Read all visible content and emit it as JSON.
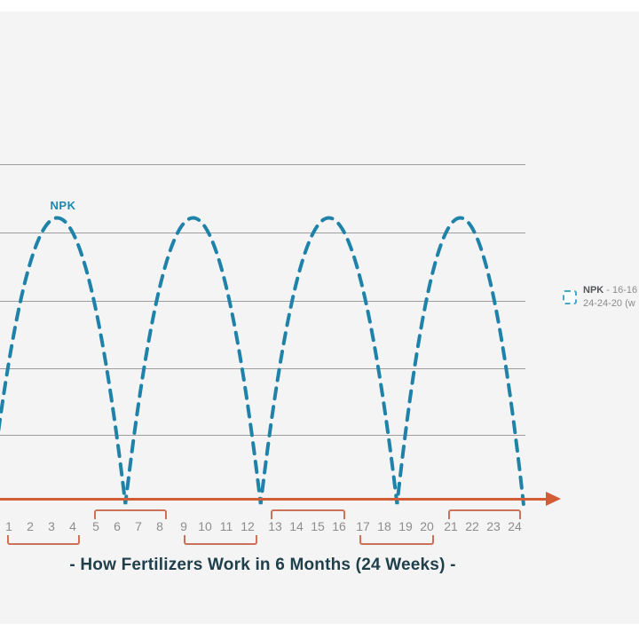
{
  "frame": {
    "background": "#ffffff",
    "canvas_background": "#f4f4f4",
    "gridline_color": "#9d9d9d"
  },
  "chart_data": {
    "type": "line",
    "title": "- How Fertilizers Work in 6 Months (24 Weeks) -",
    "xlabel": "",
    "ylabel": "",
    "x_tick_labels": [
      "1",
      "2",
      "3",
      "4",
      "5",
      "6",
      "7",
      "8",
      "9",
      "10",
      "11",
      "12",
      "13",
      "14",
      "15",
      "16",
      "17",
      "18",
      "19",
      "20",
      "21",
      "22",
      "23",
      "24"
    ],
    "grid": {
      "horizontal_gridlines": 5,
      "visible": true
    },
    "x_axis_style": "orange arrow pointing right",
    "series": [
      {
        "name": "NPK",
        "line_style": "dashed",
        "color": "#1f82a8",
        "description": "Nutrient availability rises and falls in four repeating arches, one per ~6-week application cycle; each arch peaks mid-cycle and returns to zero at the axis",
        "cycle_bounds_weeks": [
          0.1,
          6.3,
          12.45,
          18.65,
          24.4
        ],
        "peaks_at_weeks": [
          3,
          9,
          15,
          21
        ],
        "zeros_at_weeks": [
          6.3,
          12.45,
          18.65,
          24.4
        ],
        "peak_height_frac": 0.84
      }
    ],
    "legend_position": "right"
  },
  "axis": {
    "arrow_color": "#d15c36",
    "bracket_color": "#cb7258",
    "bracket_groups": [
      {
        "weeks": "1-4",
        "position": "below"
      },
      {
        "weeks": "5-8",
        "position": "above"
      },
      {
        "weeks": "9-12",
        "position": "below"
      },
      {
        "weeks": "13-16",
        "position": "above"
      },
      {
        "weeks": "17-20",
        "position": "below"
      },
      {
        "weeks": "21-24",
        "position": "above"
      }
    ]
  },
  "legend": {
    "swatch": "dashed-square-swatch",
    "swatch_color": "#49a5c6",
    "line1_bold": "NPK",
    "line1_rest": " - 16-16",
    "line2": "24-24-20 (w",
    "note": "text clipped by right edge of image"
  },
  "title": {
    "text": "- How Fertilizers Work in 6 Months (24 Weeks) -",
    "color": "#203f4b"
  }
}
